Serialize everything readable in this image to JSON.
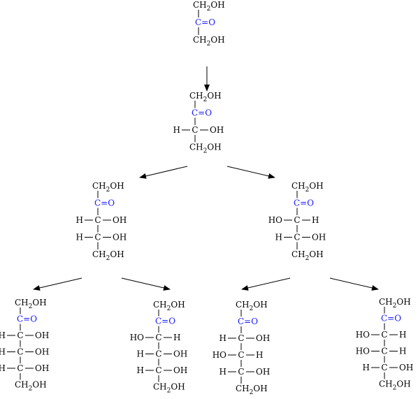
{
  "colors": {
    "carbonyl": "#1a1aff",
    "text": "#000000",
    "background": "#ffffff"
  },
  "structures": [
    {
      "id": "C3",
      "rows": [
        {
          "type": "end",
          "label": "CH2OH"
        },
        {
          "type": "keto",
          "label": "C=O"
        },
        {
          "type": "end",
          "label": "CH2OH"
        }
      ]
    },
    {
      "id": "C4",
      "rows": [
        {
          "type": "end",
          "label": "CH2OH"
        },
        {
          "type": "keto",
          "label": "C=O"
        },
        {
          "type": "chiral",
          "left": "H",
          "right": "OH"
        },
        {
          "type": "end",
          "label": "CH2OH"
        }
      ]
    },
    {
      "id": "C5a",
      "rows": [
        {
          "type": "end",
          "label": "CH2OH"
        },
        {
          "type": "keto",
          "label": "C=O"
        },
        {
          "type": "chiral",
          "left": "H",
          "right": "OH"
        },
        {
          "type": "chiral",
          "left": "H",
          "right": "OH"
        },
        {
          "type": "end",
          "label": "CH2OH"
        }
      ]
    },
    {
      "id": "C5b",
      "rows": [
        {
          "type": "end",
          "label": "CH2OH"
        },
        {
          "type": "keto",
          "label": "C=O"
        },
        {
          "type": "chiral",
          "left": "HO",
          "right": "H"
        },
        {
          "type": "chiral",
          "left": "H",
          "right": "OH"
        },
        {
          "type": "end",
          "label": "CH2OH"
        }
      ]
    },
    {
      "id": "C6a",
      "rows": [
        {
          "type": "end",
          "label": "CH2OH"
        },
        {
          "type": "keto",
          "label": "C=O"
        },
        {
          "type": "chiral",
          "left": "H",
          "right": "OH"
        },
        {
          "type": "chiral",
          "left": "H",
          "right": "OH"
        },
        {
          "type": "chiral",
          "left": "H",
          "right": "OH"
        },
        {
          "type": "end",
          "label": "CH2OH"
        }
      ]
    },
    {
      "id": "C6b",
      "rows": [
        {
          "type": "end",
          "label": "CH2OH"
        },
        {
          "type": "keto",
          "label": "C=O"
        },
        {
          "type": "chiral",
          "left": "HO",
          "right": "H"
        },
        {
          "type": "chiral",
          "left": "H",
          "right": "OH"
        },
        {
          "type": "chiral",
          "left": "H",
          "right": "OH"
        },
        {
          "type": "end",
          "label": "CH2OH"
        }
      ]
    },
    {
      "id": "C6c",
      "rows": [
        {
          "type": "end",
          "label": "CH2OH"
        },
        {
          "type": "keto",
          "label": "C=O"
        },
        {
          "type": "chiral",
          "left": "H",
          "right": "OH"
        },
        {
          "type": "chiral",
          "left": "HO",
          "right": "H"
        },
        {
          "type": "chiral",
          "left": "H",
          "right": "OH"
        },
        {
          "type": "end",
          "label": "CH2OH"
        }
      ]
    },
    {
      "id": "C6d",
      "rows": [
        {
          "type": "end",
          "label": "CH2OH"
        },
        {
          "type": "keto",
          "label": "C=O"
        },
        {
          "type": "chiral",
          "left": "HO",
          "right": "H"
        },
        {
          "type": "chiral",
          "left": "HO",
          "right": "H"
        },
        {
          "type": "chiral",
          "left": "H",
          "right": "OH"
        },
        {
          "type": "end",
          "label": "CH2OH"
        }
      ]
    }
  ],
  "arrows": [
    {
      "from": "C3",
      "to": "C4"
    },
    {
      "from": "C4",
      "to": "C5a"
    },
    {
      "from": "C4",
      "to": "C5b"
    },
    {
      "from": "C5a",
      "to": "C6a"
    },
    {
      "from": "C5a",
      "to": "C6b"
    },
    {
      "from": "C5b",
      "to": "C6c"
    },
    {
      "from": "C5b",
      "to": "C6d"
    }
  ]
}
